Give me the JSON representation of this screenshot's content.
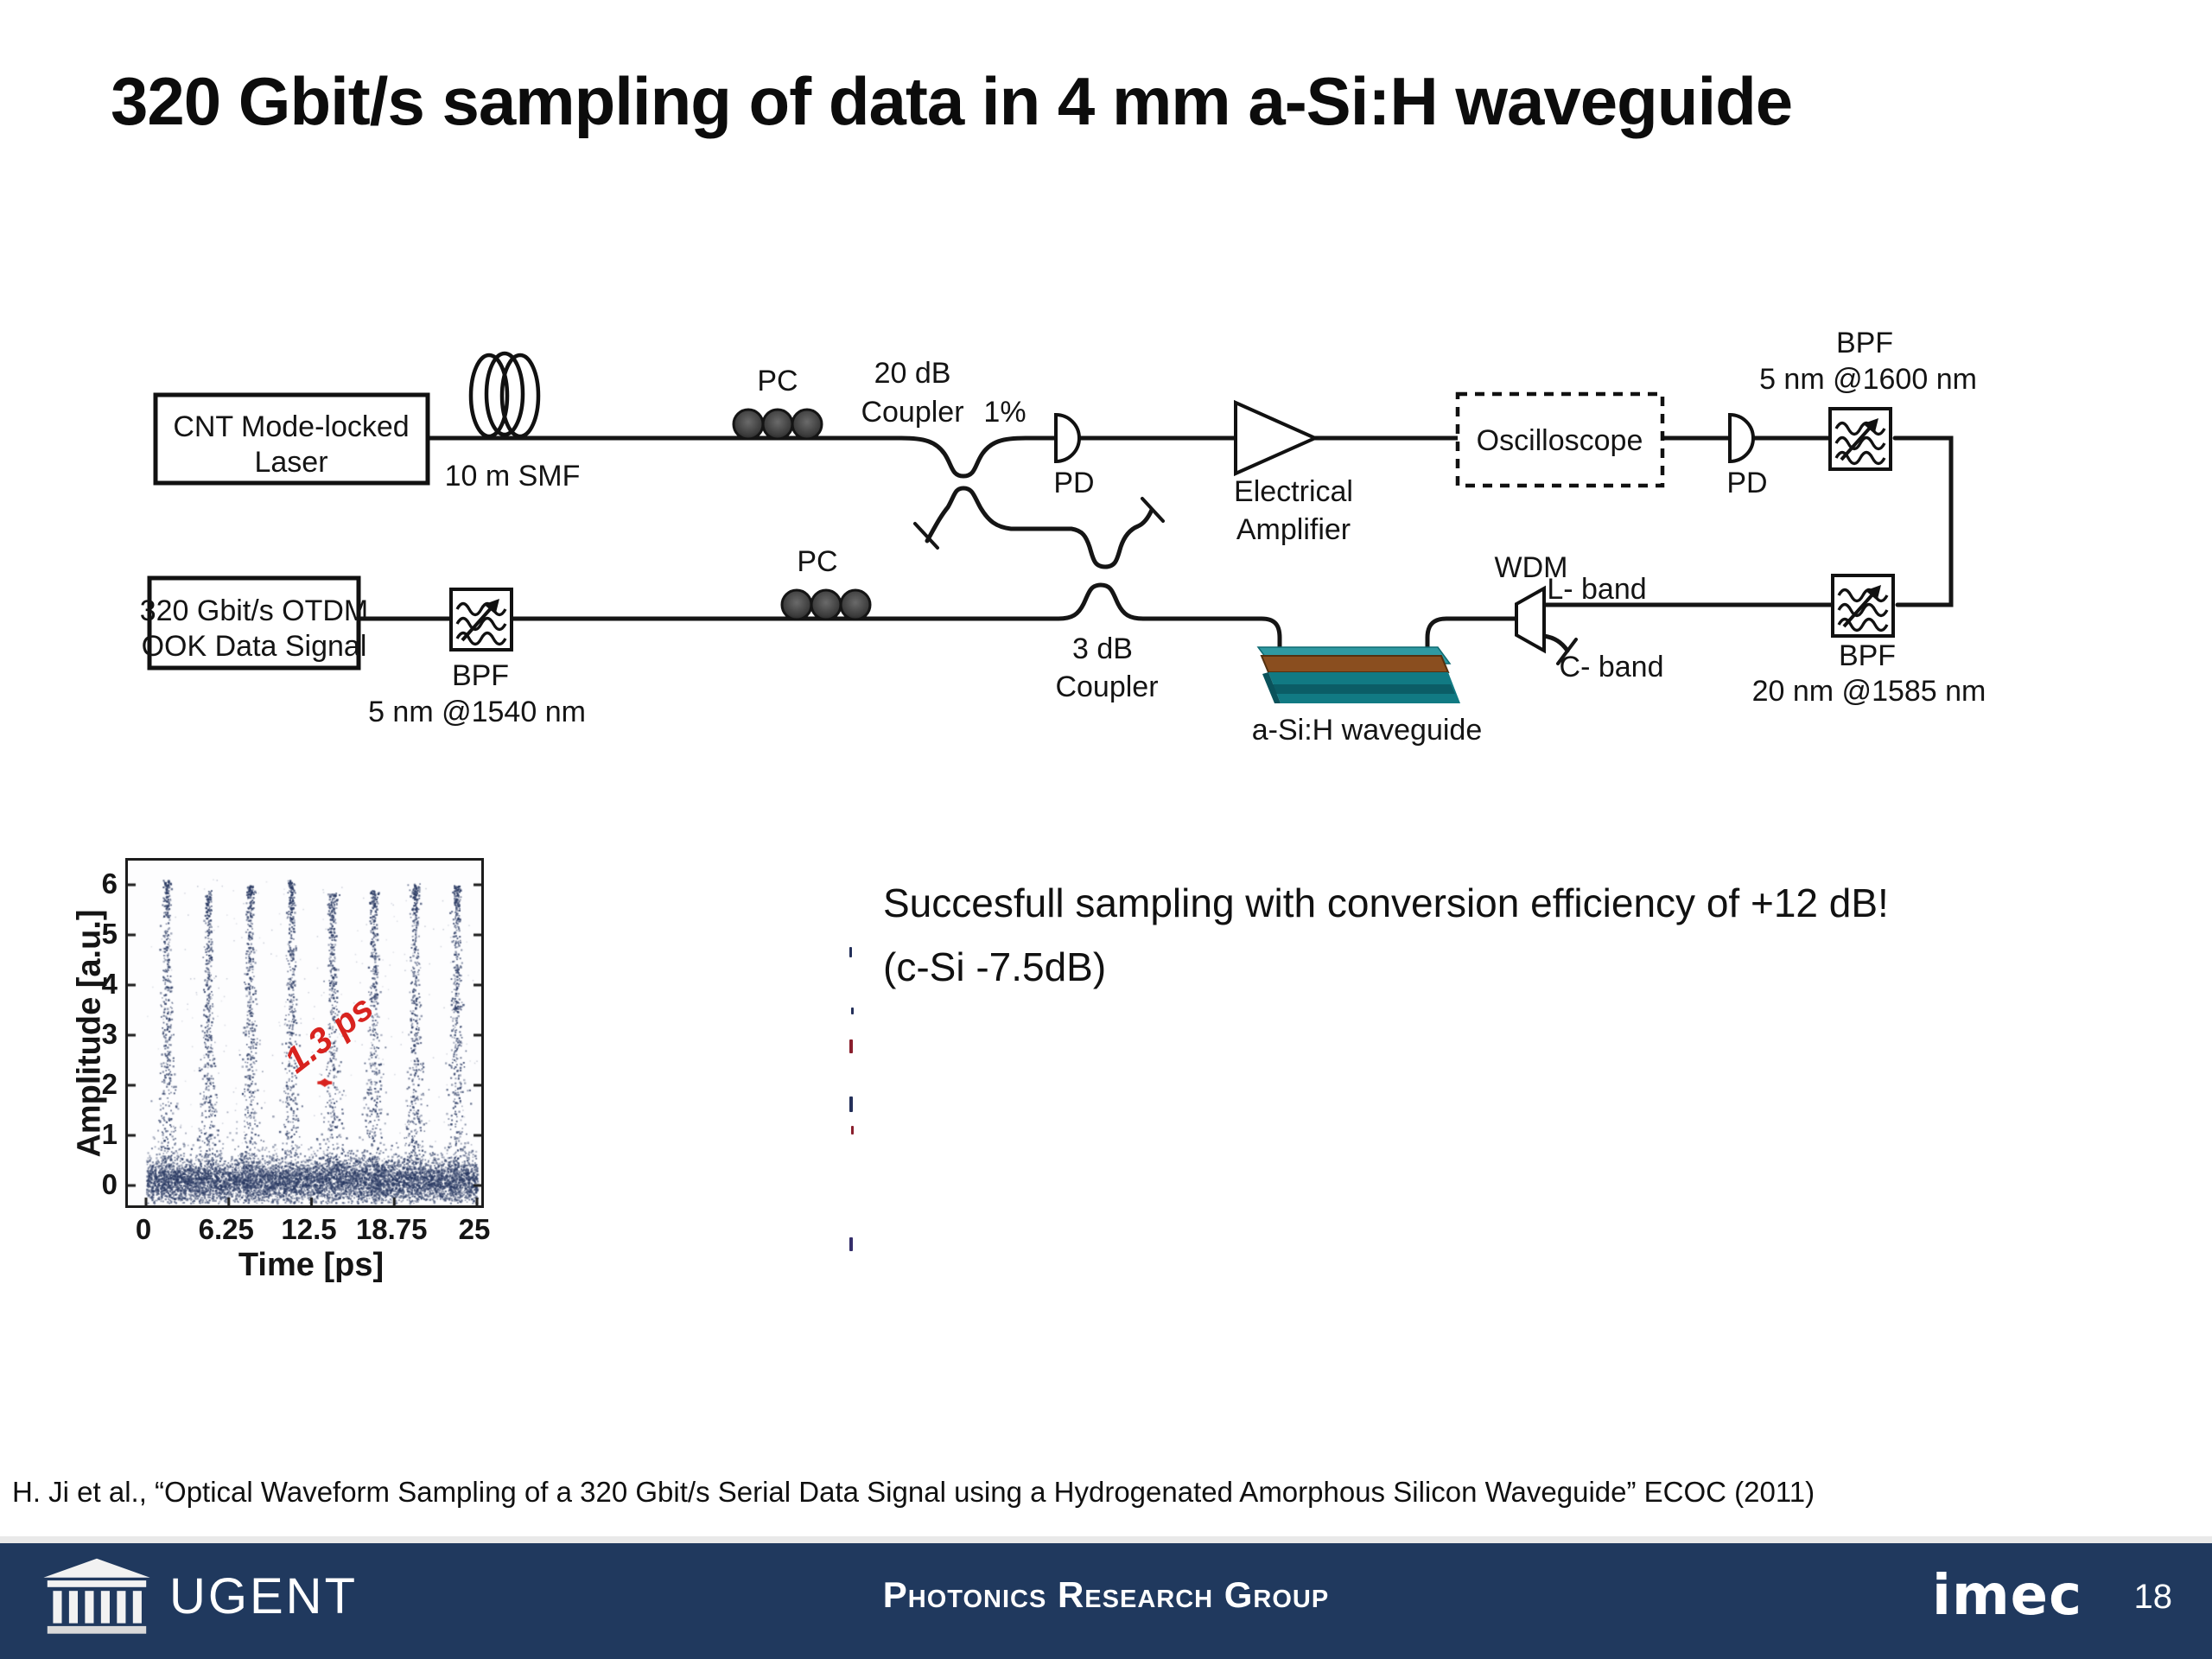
{
  "slide": {
    "title": "320 Gbit/s sampling of data in 4 mm a-Si:H waveguide"
  },
  "diagram": {
    "laser": {
      "line1": "CNT Mode-locked",
      "line2": "Laser"
    },
    "smf_label": "10 m SMF",
    "pc_top": "PC",
    "pc_bottom": "PC",
    "coupler20": {
      "line1": "20 dB",
      "line2": "Coupler"
    },
    "tap_ratio": "1%",
    "pd1": "PD",
    "pd2": "PD",
    "amplifier": {
      "line1": "Electrical",
      "line2": "Amplifier"
    },
    "oscilloscope": "Oscilloscope",
    "bpf_1600": {
      "name": "BPF",
      "spec": "5 nm @1600 nm"
    },
    "wdm": "WDM",
    "l_band": "L- band",
    "c_band": "C- band",
    "bpf_1585": {
      "name": "BPF",
      "spec": "20 nm @1585 nm"
    },
    "waveguide_label": "a-Si:H waveguide",
    "coupler3": {
      "line1": "3 dB",
      "line2": "Coupler"
    },
    "data_source": {
      "line1": "320 Gbit/s OTDM",
      "line2": "OOK Data Signal"
    },
    "bpf_1540": {
      "name": "BPF",
      "spec": "5 nm @1540 nm"
    }
  },
  "results": {
    "line1": "Succesfull sampling with conversion efficiency of +12 dB!",
    "line2": "(c-Si -7.5dB)"
  },
  "chart_data": {
    "type": "scatter",
    "description": "Sampled waveform of the 320 Gbit/s OTDM data signal (pulse trace with noise baseline)",
    "xlabel": "Time [ps]",
    "ylabel": "Amplitude [a.u.]",
    "xlim": [
      0,
      25
    ],
    "ylim": [
      -0.8,
      6.4
    ],
    "x_ticks": [
      0,
      6.25,
      12.5,
      18.75,
      25
    ],
    "x_tick_labels": [
      "0",
      "6.25",
      "12.5",
      "18.75",
      "25"
    ],
    "y_ticks": [
      0,
      1,
      2,
      3,
      4,
      5,
      6
    ],
    "y_tick_labels": [
      "0",
      "1",
      "2",
      "3",
      "4",
      "5",
      "6"
    ],
    "pulse_period_ps": 3.125,
    "pulse_width_ps": 1.3,
    "pulse_centers_ps": [
      1.55,
      4.68,
      7.8,
      10.93,
      14.05,
      17.18,
      20.3,
      23.43
    ],
    "pulse_peak_amplitudes": [
      6.1,
      5.9,
      6.0,
      6.1,
      5.85,
      5.9,
      6.05,
      6.0
    ],
    "baseline_level": 0.1,
    "annotation": {
      "text": "1.3 ps",
      "color": "#d8231f",
      "rotation_deg": -38
    },
    "point_color": "#2a3a63",
    "grid": false,
    "legend": null
  },
  "citation": "H. Ji et al., “Optical Waveform Sampling of a 320 Gbit/s Serial Data Signal using a Hydrogenated Amorphous Silicon Waveguide” ECOC (2011)",
  "footer": {
    "university": "UGENT",
    "group": "Photonics Research Group",
    "brand": "imec",
    "page_number": "18"
  },
  "colors": {
    "footer_navy": "#20395e",
    "chip_teal_top": "#2f99a1",
    "chip_teal_front": "#117a83",
    "chip_brown": "#8a4e1f",
    "scatter_navy": "#2a3a63",
    "annotation_red": "#d8231f"
  }
}
